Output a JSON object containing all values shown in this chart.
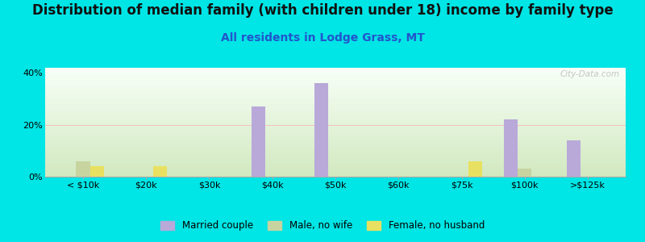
{
  "title": "Distribution of median family (with children under 18) income by family type",
  "subtitle": "All residents in Lodge Grass, MT",
  "categories": [
    "< $10k",
    "$20k",
    "$30k",
    "$40k",
    "$50k",
    "$60k",
    "$75k",
    "$100k",
    ">$125k"
  ],
  "married_couple": [
    0,
    0,
    0,
    27,
    36,
    0,
    0,
    22,
    14
  ],
  "male_no_wife": [
    6,
    0,
    0,
    0,
    0,
    0,
    0,
    3,
    0
  ],
  "female_no_husband": [
    4,
    4,
    0,
    0,
    0,
    0,
    6,
    0,
    0
  ],
  "bar_width": 0.22,
  "ylim": [
    0,
    42
  ],
  "yticks": [
    0,
    20,
    40
  ],
  "ytick_labels": [
    "0%",
    "20%",
    "40%"
  ],
  "color_married": "#b8a9d9",
  "color_male": "#c8d4a0",
  "color_female": "#e8e060",
  "bg_outer": "#00e5e5",
  "bg_plot_top": "#f8fff8",
  "bg_plot_bottom": "#d0e8c0",
  "title_fontsize": 12,
  "subtitle_fontsize": 10,
  "subtitle_color": "#2255cc",
  "watermark": "City-Data.com",
  "legend_labels": [
    "Married couple",
    "Male, no wife",
    "Female, no husband"
  ]
}
